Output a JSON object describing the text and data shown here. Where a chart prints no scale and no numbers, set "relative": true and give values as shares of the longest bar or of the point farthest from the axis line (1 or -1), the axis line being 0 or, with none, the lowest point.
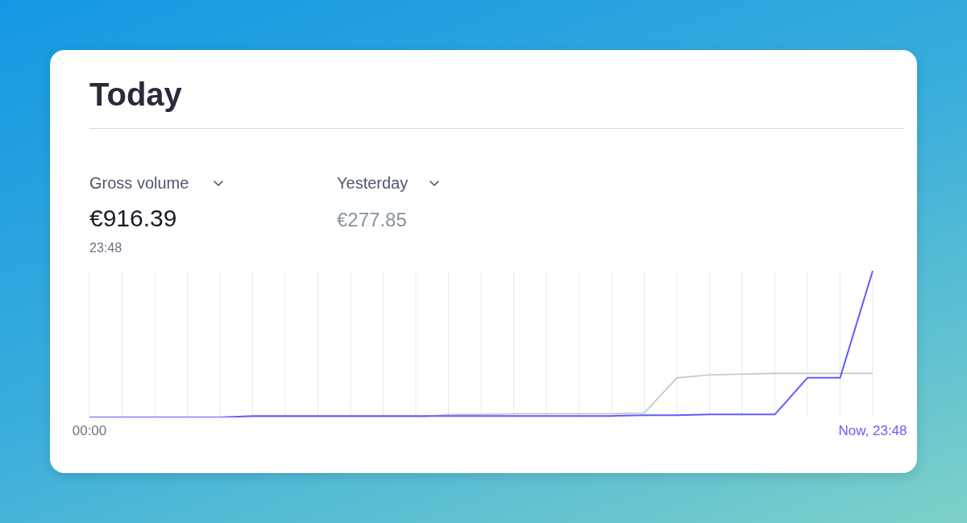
{
  "chart_data": {
    "type": "line",
    "title": "Today",
    "relative": true,
    "annotations": [
      "Gross volume",
      "€916.39",
      "23:48",
      "Yesterday",
      "€277.85"
    ],
    "grid": "x",
    "marker": "none",
    "line_style": "solid",
    "categories": [
      "00:00",
      null,
      null,
      null,
      null,
      null,
      null,
      null,
      null,
      null,
      null,
      null,
      null,
      null,
      null,
      null,
      null,
      null,
      null,
      null,
      null,
      null,
      null,
      null,
      "Now, 23:48"
    ],
    "series": [
      {
        "color": "#635bff",
        "values": [
          0,
          0,
          0,
          0,
          0,
          0.01,
          0.01,
          0.01,
          0.01,
          0.01,
          0.01,
          0.01,
          0.01,
          0.01,
          0.01,
          0.01,
          0.01,
          0.015,
          0.015,
          0.02,
          0.02,
          0.02,
          0.27,
          0.27,
          1
        ]
      },
      {
        "color": "#c1c4c9",
        "values": [
          0,
          0,
          0,
          0,
          0,
          0,
          0,
          0,
          0,
          0,
          0,
          0.02,
          0.02,
          0.025,
          0.025,
          0.025,
          0.025,
          0.03,
          0.27,
          0.29,
          0.295,
          0.3,
          0.3,
          0.3,
          0.3
        ]
      }
    ]
  }
}
